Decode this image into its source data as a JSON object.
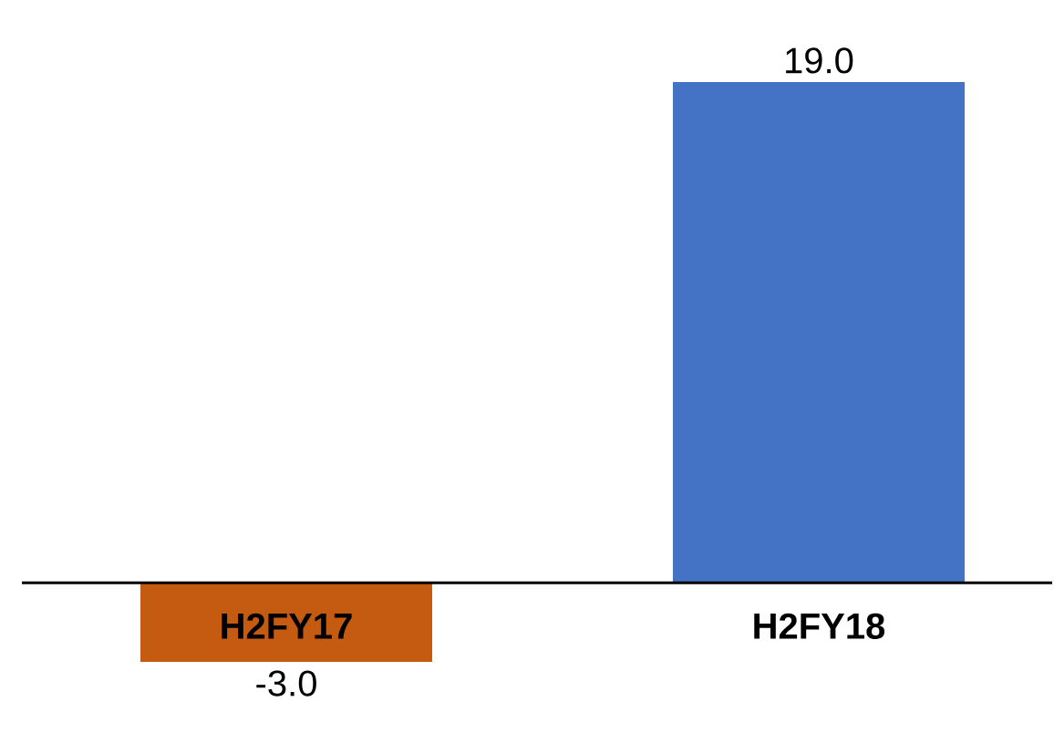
{
  "chart_data": {
    "type": "bar",
    "categories": [
      "H2FY17",
      "H2FY18"
    ],
    "values": [
      -3.0,
      19.0
    ],
    "colors": [
      "#c55a11",
      "#4472c4"
    ],
    "value_labels": [
      "-3.0",
      "19.0"
    ]
  }
}
